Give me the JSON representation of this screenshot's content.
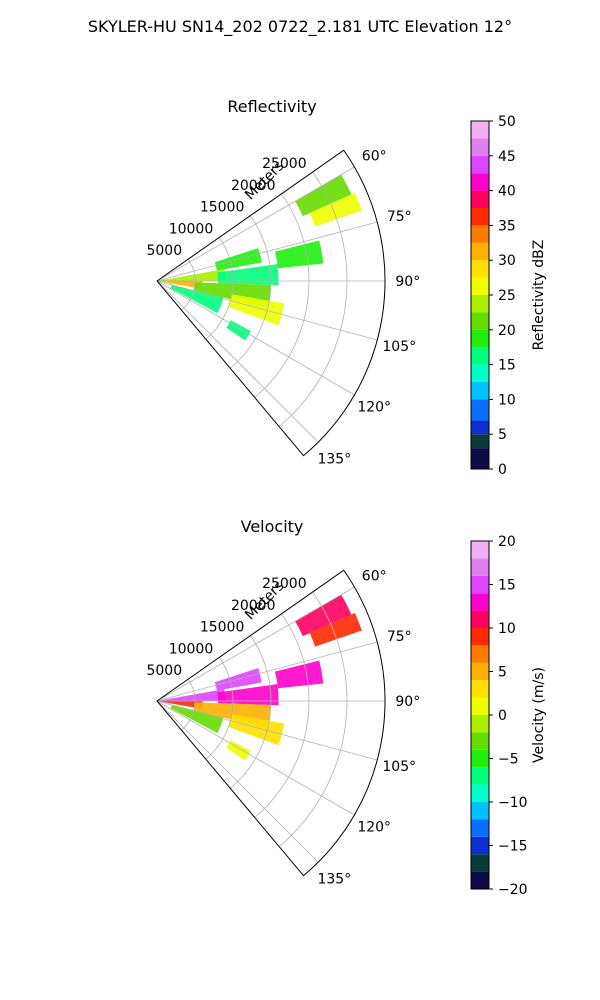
{
  "figure": {
    "suptitle": "SKYLER-HU  SN14_202  0722_2.181 UTC Elevation 12°"
  },
  "colors": {
    "grid": "#b0b0b0",
    "axes": "#000000",
    "background": "#ffffff"
  },
  "chart_data": [
    {
      "type": "heatmap",
      "projection": "polar-sector",
      "title": "Reflectivity",
      "radial_label": "Meters",
      "radial_ticks": [
        "5000",
        "10000",
        "15000",
        "20000",
        "25000"
      ],
      "radial_range": [
        0,
        30000
      ],
      "angle_ticks": [
        "60°",
        "75°",
        "90°",
        "105°",
        "120°",
        "135°"
      ],
      "angle_range_deg": [
        55,
        140
      ],
      "grid": true,
      "colorbar": {
        "label": "Reflectivity dBZ",
        "range": [
          0,
          50
        ],
        "ticks": [
          "0",
          "5",
          "10",
          "15",
          "20",
          "25",
          "30",
          "35",
          "40",
          "45",
          "50"
        ],
        "colormap": [
          [
            0,
            "#0b0b4a"
          ],
          [
            3,
            "#0a3b3b"
          ],
          [
            5,
            "#0a2fd0"
          ],
          [
            7,
            "#0a6fff"
          ],
          [
            10,
            "#00c0ff"
          ],
          [
            12.5,
            "#00ffc8"
          ],
          [
            15,
            "#00ff7a"
          ],
          [
            17.5,
            "#22ee10"
          ],
          [
            20,
            "#66dd00"
          ],
          [
            22.5,
            "#aaee00"
          ],
          [
            25,
            "#eeff00"
          ],
          [
            27.5,
            "#ffe000"
          ],
          [
            30,
            "#ffb000"
          ],
          [
            32.5,
            "#ff7a00"
          ],
          [
            35,
            "#ff2a00"
          ],
          [
            37.5,
            "#ff0060"
          ],
          [
            40,
            "#ff00cc"
          ],
          [
            42.5,
            "#dd44ff"
          ],
          [
            45,
            "#e080f0"
          ],
          [
            47.5,
            "#f2b0f2"
          ],
          [
            50,
            "#fbe0fb"
          ]
        ]
      },
      "echo_regions": [
        {
          "az": [
            60,
            66
          ],
          "r": [
            21000,
            28000
          ],
          "value": 21
        },
        {
          "az": [
            66,
            71
          ],
          "r": [
            22000,
            28500
          ],
          "value": 26
        },
        {
          "az": [
            72,
            80
          ],
          "r": [
            8000,
            14000
          ],
          "value": 19
        },
        {
          "az": [
            76,
            84
          ],
          "r": [
            16000,
            22000
          ],
          "value": 19
        },
        {
          "az": [
            80,
            90
          ],
          "r": [
            0,
            9000
          ],
          "value": 24
        },
        {
          "az": [
            82,
            92
          ],
          "r": [
            8000,
            16000
          ],
          "value": 17
        },
        {
          "az": [
            90,
            100
          ],
          "r": [
            0,
            6000
          ],
          "value": 30
        },
        {
          "az": [
            92,
            104
          ],
          "r": [
            5000,
            15000
          ],
          "value": 20
        },
        {
          "az": [
            100,
            110
          ],
          "r": [
            10000,
            17000
          ],
          "value": 25
        },
        {
          "az": [
            104,
            118
          ],
          "r": [
            2000,
            9000
          ],
          "value": 16
        },
        {
          "az": [
            118,
            124
          ],
          "r": [
            11000,
            14000
          ],
          "value": 16
        }
      ]
    },
    {
      "type": "heatmap",
      "projection": "polar-sector",
      "title": "Velocity",
      "radial_label": "Meters",
      "radial_ticks": [
        "5000",
        "10000",
        "15000",
        "20000",
        "25000"
      ],
      "radial_range": [
        0,
        30000
      ],
      "angle_ticks": [
        "60°",
        "75°",
        "90°",
        "105°",
        "120°",
        "135°"
      ],
      "angle_range_deg": [
        55,
        140
      ],
      "grid": true,
      "colorbar": {
        "label": "Velocity (m/s)",
        "range": [
          -20,
          20
        ],
        "ticks": [
          "−20",
          "−15",
          "−10",
          "−5",
          "0",
          "5",
          "10",
          "15",
          "20"
        ],
        "colormap": [
          [
            -20,
            "#0b0b4a"
          ],
          [
            -18,
            "#0a3b3b"
          ],
          [
            -16,
            "#0a2fd0"
          ],
          [
            -14,
            "#0a6fff"
          ],
          [
            -12,
            "#00c0ff"
          ],
          [
            -10,
            "#00ffc8"
          ],
          [
            -8,
            "#00ff7a"
          ],
          [
            -6,
            "#22ee10"
          ],
          [
            -4,
            "#66dd00"
          ],
          [
            -2,
            "#aaee00"
          ],
          [
            0,
            "#eeff00"
          ],
          [
            2,
            "#ffe000"
          ],
          [
            4,
            "#ffb000"
          ],
          [
            6,
            "#ff7a00"
          ],
          [
            8,
            "#ff2a00"
          ],
          [
            10,
            "#ff0060"
          ],
          [
            12,
            "#ff00cc"
          ],
          [
            14,
            "#dd44ff"
          ],
          [
            16,
            "#e080f0"
          ],
          [
            18,
            "#f2b0f2"
          ],
          [
            20,
            "#fbe0fb"
          ]
        ]
      },
      "echo_regions": [
        {
          "az": [
            60,
            66
          ],
          "r": [
            21000,
            28000
          ],
          "value": 11
        },
        {
          "az": [
            66,
            71
          ],
          "r": [
            22000,
            28500
          ],
          "value": 8
        },
        {
          "az": [
            72,
            80
          ],
          "r": [
            8000,
            14000
          ],
          "value": 14
        },
        {
          "az": [
            76,
            84
          ],
          "r": [
            16000,
            22000
          ],
          "value": 12
        },
        {
          "az": [
            80,
            90
          ],
          "r": [
            0,
            9000
          ],
          "value": 14
        },
        {
          "az": [
            82,
            92
          ],
          "r": [
            8000,
            16000
          ],
          "value": 12
        },
        {
          "az": [
            90,
            100
          ],
          "r": [
            0,
            6000
          ],
          "value": 9
        },
        {
          "az": [
            92,
            104
          ],
          "r": [
            5000,
            15000
          ],
          "value": 5
        },
        {
          "az": [
            100,
            110
          ],
          "r": [
            10000,
            17000
          ],
          "value": 3
        },
        {
          "az": [
            104,
            118
          ],
          "r": [
            2000,
            9000
          ],
          "value": -4
        },
        {
          "az": [
            118,
            124
          ],
          "r": [
            11000,
            14000
          ],
          "value": 1
        }
      ]
    }
  ]
}
